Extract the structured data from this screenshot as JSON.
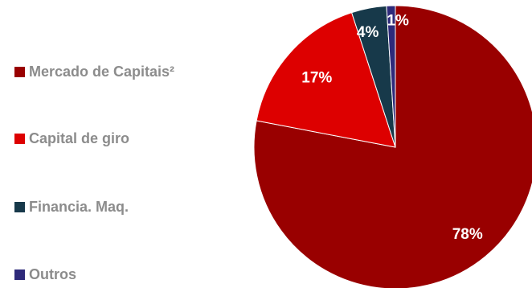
{
  "chart_data": {
    "type": "pie",
    "categories": [
      "Mercado de Capitais²",
      "Capital de giro",
      "Financia. Maq.",
      "Outros"
    ],
    "values": [
      78,
      17,
      4,
      1
    ],
    "data_labels": [
      "78%",
      "17%",
      "4%",
      "1%"
    ],
    "colors": [
      "#990000",
      "#dd0000",
      "#17394a",
      "#2e2a7a"
    ],
    "legend_position": "left",
    "start_angle_deg": 0,
    "direction": "clockwise"
  }
}
